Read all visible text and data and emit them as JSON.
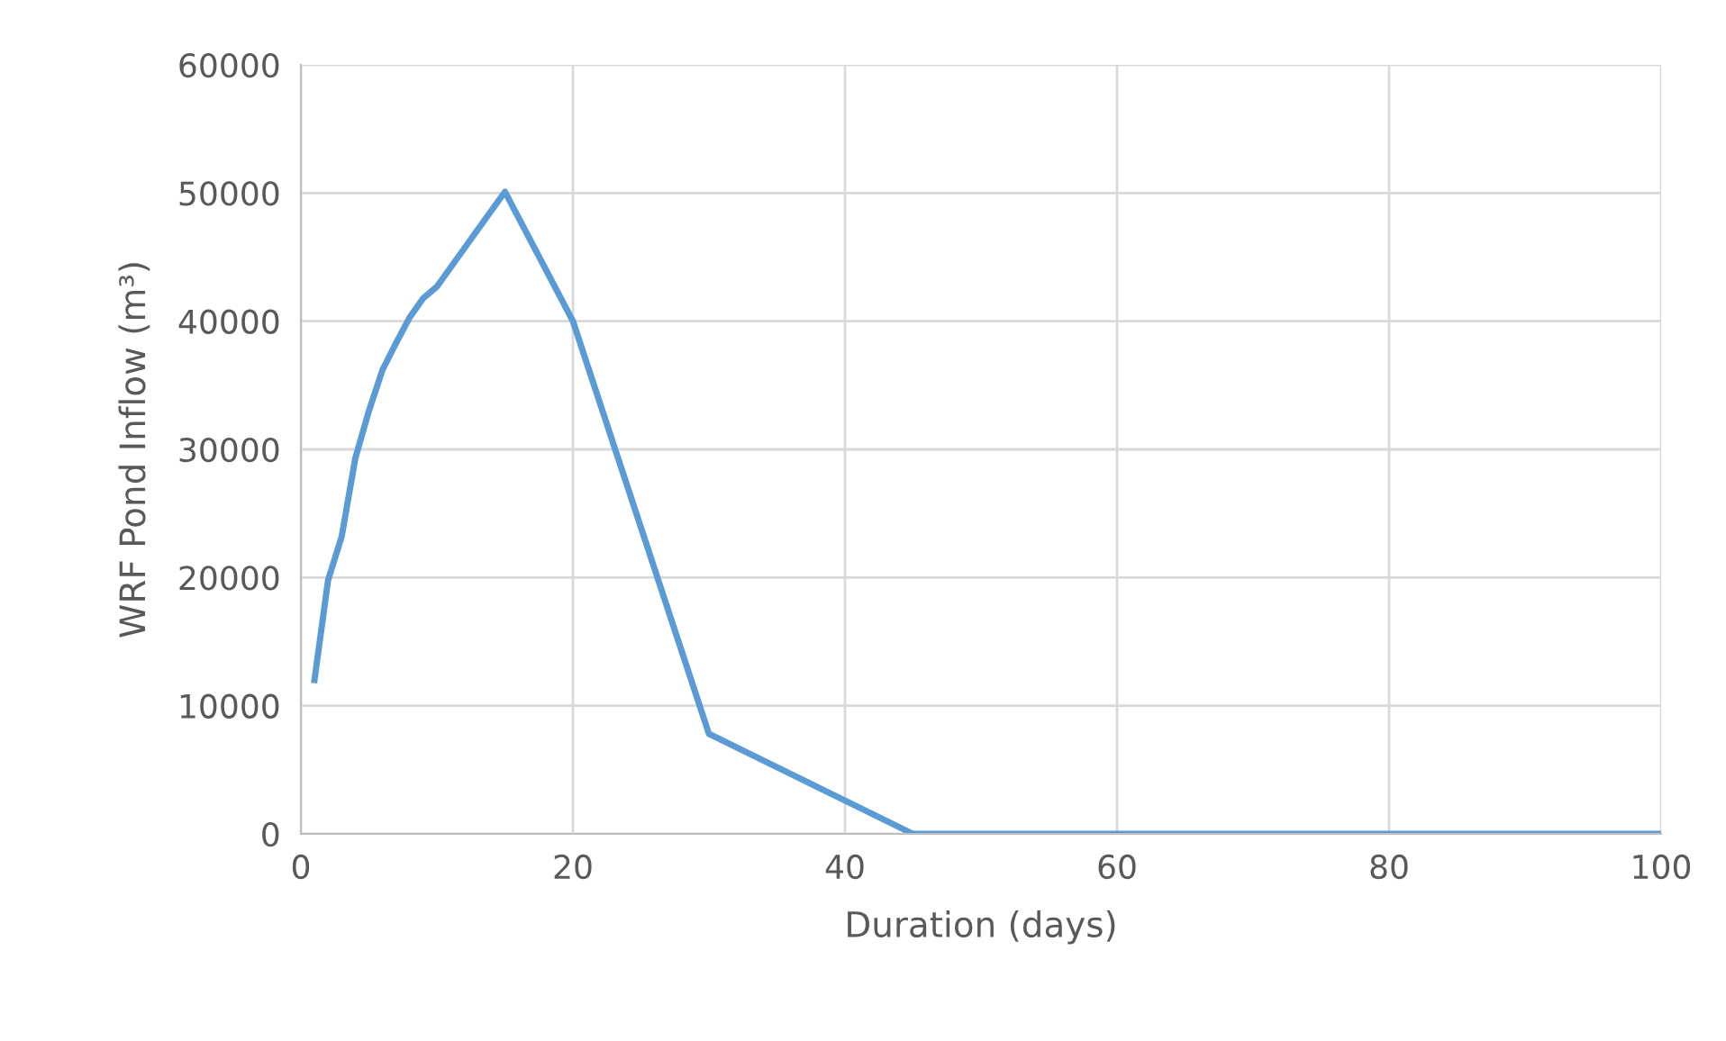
{
  "chart_data": {
    "type": "line",
    "xlabel": "Duration (days)",
    "ylabel": "WRF Pond Inflow (m³)",
    "x": [
      1,
      2,
      3,
      4,
      5,
      6,
      7,
      8,
      9,
      10,
      15,
      20,
      30,
      45,
      60,
      80,
      100
    ],
    "series": [
      {
        "color": "#5b9bd5",
        "values": [
          12000,
          19800,
          23200,
          29300,
          33000,
          36200,
          38300,
          40300,
          41800,
          42700,
          50100,
          40000,
          7800,
          0,
          0,
          0,
          0
        ]
      }
    ],
    "xlim": [
      0,
      100
    ],
    "xticks": [
      0,
      20,
      40,
      60,
      80,
      100
    ],
    "ylim": [
      0,
      60000
    ],
    "yticks": [
      0,
      10000,
      20000,
      30000,
      40000,
      50000,
      60000
    ],
    "grid": true,
    "marker": "none",
    "line_style": "solid"
  }
}
